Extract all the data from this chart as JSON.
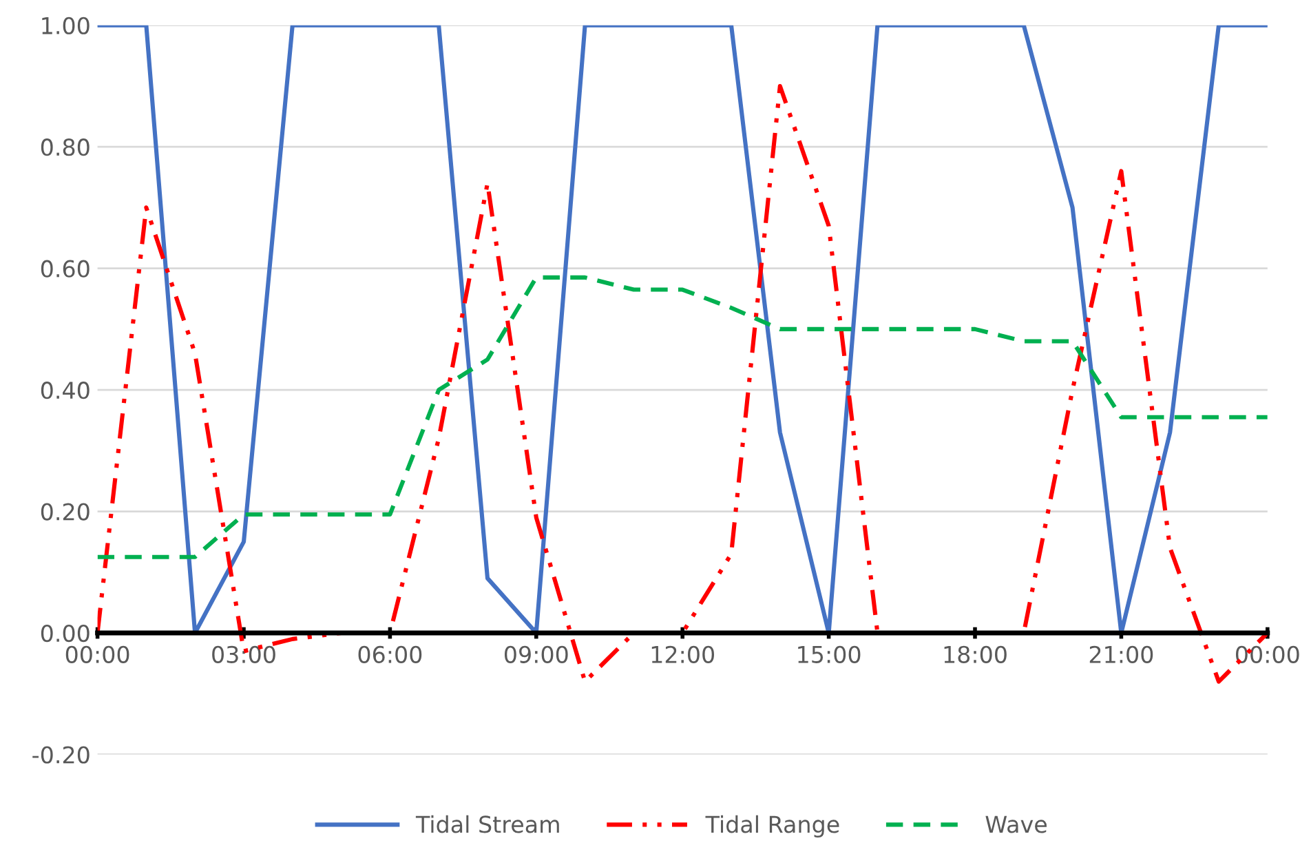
{
  "chart_data": {
    "type": "line",
    "x": [
      0,
      1,
      2,
      3,
      4,
      5,
      6,
      7,
      8,
      9,
      10,
      11,
      12,
      13,
      14,
      15,
      16,
      17,
      18,
      19,
      20,
      21,
      22,
      23,
      24
    ],
    "series": [
      {
        "name": "Tidal Stream",
        "color": "#4472c4",
        "line_style": "solid",
        "values": [
          1,
          1,
          0,
          0.15,
          1,
          1,
          1,
          1,
          0.09,
          0,
          1,
          1,
          1,
          1,
          0.33,
          0,
          1,
          1,
          1,
          1,
          0.7,
          0,
          0.33,
          1,
          1
        ]
      },
      {
        "name": "Tidal Range",
        "color": "#ff0000",
        "line_style": "dashdotdot",
        "values": [
          0,
          0.7,
          0.46,
          -0.03,
          -0.01,
          0,
          0,
          0.32,
          0.74,
          0.19,
          -0.08,
          0,
          0,
          0.13,
          0.9,
          0.67,
          0,
          0,
          0,
          0,
          0.4,
          0.76,
          0.14,
          -0.08,
          0
        ]
      },
      {
        "name": "Wave",
        "color": "#00b050",
        "line_style": "dashed",
        "values": [
          0.125,
          0.125,
          0.125,
          0.195,
          0.195,
          0.195,
          0.195,
          0.4,
          0.45,
          0.585,
          0.585,
          0.565,
          0.565,
          0.535,
          0.5,
          0.5,
          0.5,
          0.5,
          0.5,
          0.48,
          0.48,
          0.355,
          0.355,
          0.355,
          0.355
        ]
      }
    ],
    "xlim": [
      0,
      24
    ],
    "xticks": [
      {
        "value": 0,
        "label": "00:00"
      },
      {
        "value": 3,
        "label": "03:00"
      },
      {
        "value": 6,
        "label": "06:00"
      },
      {
        "value": 9,
        "label": "09:00"
      },
      {
        "value": 12,
        "label": "12:00"
      },
      {
        "value": 15,
        "label": "15:00"
      },
      {
        "value": 18,
        "label": "18:00"
      },
      {
        "value": 21,
        "label": "21:00"
      },
      {
        "value": 24,
        "label": "00:00"
      }
    ],
    "ylim": [
      -0.2,
      1.0
    ],
    "yticks": [
      {
        "value": -0.2,
        "label": "-0.20"
      },
      {
        "value": 0,
        "label": "0.00"
      },
      {
        "value": 0.2,
        "label": "0.20"
      },
      {
        "value": 0.4,
        "label": "0.40"
      },
      {
        "value": 0.6,
        "label": "0.60"
      },
      {
        "value": 0.8,
        "label": "0.80"
      },
      {
        "value": 1.0,
        "label": "1.00"
      }
    ],
    "grid": "y",
    "legend": "bottom",
    "marker": "none"
  }
}
